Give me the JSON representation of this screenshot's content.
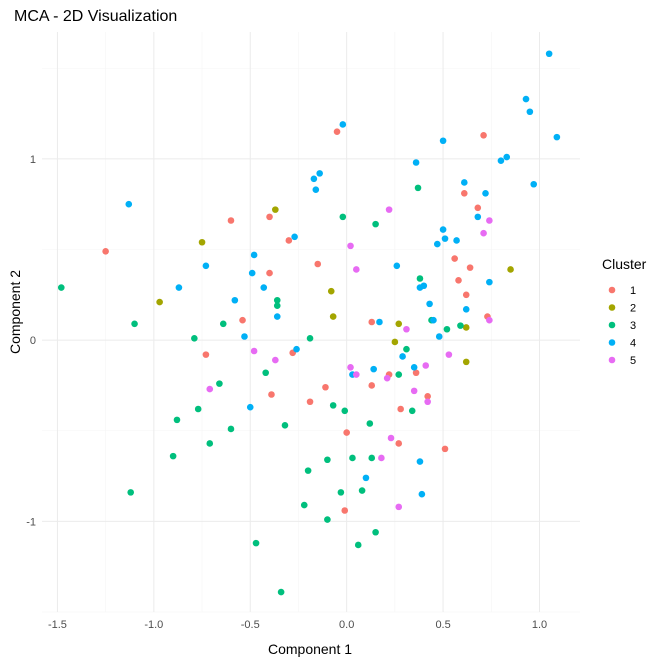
{
  "chart_data": {
    "type": "scatter",
    "title": "MCA - 2D Visualization",
    "xlabel": "Component 1",
    "ylabel": "Component 2",
    "xlim": [
      -1.58,
      1.21
    ],
    "ylim": [
      -1.5,
      1.7
    ],
    "x_ticks": [
      -1.5,
      -1.0,
      -0.5,
      0.0,
      0.5,
      1.0
    ],
    "x_tick_labels": [
      "-1.5",
      "-1.0",
      "-0.5",
      "0.0",
      "0.5",
      "1.0"
    ],
    "y_ticks": [
      -1,
      0,
      1
    ],
    "y_tick_labels": [
      "-1",
      "0",
      "1"
    ],
    "grid": true,
    "legend": {
      "title": "Cluster",
      "position": "right"
    },
    "series": [
      {
        "name": "1",
        "color": "#F8766D",
        "points": [
          [
            -1.25,
            0.49
          ],
          [
            -0.6,
            0.66
          ],
          [
            -0.54,
            0.11
          ],
          [
            -0.4,
            0.68
          ],
          [
            -0.4,
            0.37
          ],
          [
            -0.3,
            0.55
          ],
          [
            -0.28,
            -0.07
          ],
          [
            -0.39,
            -0.3
          ],
          [
            -0.73,
            -0.08
          ],
          [
            -0.15,
            0.42
          ],
          [
            -0.11,
            -0.26
          ],
          [
            -0.19,
            -0.34
          ],
          [
            -0.05,
            1.15
          ],
          [
            0.0,
            -0.51
          ],
          [
            -0.01,
            -0.94
          ],
          [
            0.13,
            0.1
          ],
          [
            0.13,
            -0.25
          ],
          [
            0.22,
            -0.19
          ],
          [
            0.28,
            -0.38
          ],
          [
            0.27,
            -0.57
          ],
          [
            0.36,
            -0.18
          ],
          [
            0.42,
            -0.31
          ],
          [
            0.51,
            -0.6
          ],
          [
            0.56,
            0.45
          ],
          [
            0.58,
            0.33
          ],
          [
            0.61,
            0.81
          ],
          [
            0.62,
            0.25
          ],
          [
            0.64,
            0.4
          ],
          [
            0.68,
            0.73
          ],
          [
            0.71,
            1.13
          ],
          [
            0.73,
            0.13
          ]
        ]
      },
      {
        "name": "2",
        "color": "#A3A500",
        "points": [
          [
            -0.97,
            0.21
          ],
          [
            -0.75,
            0.54
          ],
          [
            -0.37,
            0.72
          ],
          [
            -0.08,
            0.27
          ],
          [
            -0.07,
            0.13
          ],
          [
            0.25,
            -0.01
          ],
          [
            0.27,
            0.09
          ],
          [
            0.62,
            0.07
          ],
          [
            0.62,
            -0.12
          ],
          [
            0.85,
            0.39
          ]
        ]
      },
      {
        "name": "3",
        "color": "#00BF7D",
        "points": [
          [
            -1.48,
            0.29
          ],
          [
            -1.12,
            -0.84
          ],
          [
            -1.1,
            0.09
          ],
          [
            -0.9,
            -0.64
          ],
          [
            -0.88,
            -0.44
          ],
          [
            -0.79,
            0.01
          ],
          [
            -0.77,
            -0.38
          ],
          [
            -0.71,
            -0.57
          ],
          [
            -0.66,
            -0.24
          ],
          [
            -0.64,
            0.09
          ],
          [
            -0.6,
            -0.49
          ],
          [
            -0.47,
            -1.12
          ],
          [
            -0.42,
            -0.18
          ],
          [
            -0.36,
            0.19
          ],
          [
            -0.36,
            0.22
          ],
          [
            -0.34,
            -1.39
          ],
          [
            -0.32,
            -0.47
          ],
          [
            -0.22,
            -0.91
          ],
          [
            -0.2,
            -0.72
          ],
          [
            -0.19,
            0.01
          ],
          [
            -0.1,
            -0.66
          ],
          [
            -0.1,
            -0.99
          ],
          [
            -0.07,
            -0.36
          ],
          [
            -0.03,
            -0.84
          ],
          [
            -0.02,
            0.68
          ],
          [
            -0.01,
            -0.39
          ],
          [
            0.03,
            -0.65
          ],
          [
            0.06,
            -1.13
          ],
          [
            0.08,
            -0.83
          ],
          [
            0.12,
            -0.46
          ],
          [
            0.15,
            -1.06
          ],
          [
            0.15,
            0.64
          ],
          [
            0.27,
            -0.19
          ],
          [
            0.31,
            -0.05
          ],
          [
            0.34,
            -0.39
          ],
          [
            0.37,
            0.84
          ],
          [
            0.38,
            0.34
          ],
          [
            0.44,
            0.11
          ],
          [
            0.52,
            0.06
          ],
          [
            0.59,
            0.08
          ],
          [
            0.13,
            -0.65
          ]
        ]
      },
      {
        "name": "4",
        "color": "#00B0F6",
        "points": [
          [
            -1.13,
            0.75
          ],
          [
            -0.87,
            0.29
          ],
          [
            -0.73,
            0.41
          ],
          [
            -0.58,
            0.22
          ],
          [
            -0.53,
            0.02
          ],
          [
            -0.48,
            0.47
          ],
          [
            -0.5,
            -0.37
          ],
          [
            -0.49,
            0.37
          ],
          [
            -0.43,
            0.29
          ],
          [
            -0.36,
            0.13
          ],
          [
            -0.27,
            0.57
          ],
          [
            -0.26,
            -0.05
          ],
          [
            -0.17,
            0.89
          ],
          [
            -0.16,
            0.83
          ],
          [
            -0.14,
            0.92
          ],
          [
            -0.02,
            1.19
          ],
          [
            0.03,
            -0.19
          ],
          [
            0.1,
            -0.76
          ],
          [
            0.14,
            -0.16
          ],
          [
            0.17,
            0.1
          ],
          [
            0.26,
            0.41
          ],
          [
            0.29,
            -0.09
          ],
          [
            0.35,
            -0.15
          ],
          [
            0.36,
            0.98
          ],
          [
            0.38,
            0.29
          ],
          [
            0.38,
            -0.67
          ],
          [
            0.39,
            -0.85
          ],
          [
            0.4,
            0.3
          ],
          [
            0.43,
            0.2
          ],
          [
            0.45,
            0.11
          ],
          [
            0.47,
            0.53
          ],
          [
            0.48,
            0.02
          ],
          [
            0.5,
            1.1
          ],
          [
            0.5,
            0.61
          ],
          [
            0.51,
            0.56
          ],
          [
            0.57,
            0.55
          ],
          [
            0.61,
            0.87
          ],
          [
            0.62,
            0.17
          ],
          [
            0.68,
            0.68
          ],
          [
            0.72,
            0.81
          ],
          [
            0.74,
            0.32
          ],
          [
            0.8,
            0.99
          ],
          [
            0.83,
            1.01
          ],
          [
            0.93,
            1.33
          ],
          [
            0.95,
            1.26
          ],
          [
            0.97,
            0.86
          ],
          [
            1.05,
            1.58
          ],
          [
            1.09,
            1.12
          ]
        ]
      },
      {
        "name": "5",
        "color": "#E76BF3",
        "points": [
          [
            -0.71,
            -0.27
          ],
          [
            -0.48,
            -0.06
          ],
          [
            -0.37,
            -0.11
          ],
          [
            0.02,
            0.52
          ],
          [
            0.02,
            -0.15
          ],
          [
            0.05,
            0.39
          ],
          [
            0.05,
            -0.19
          ],
          [
            0.18,
            -0.65
          ],
          [
            0.22,
            0.72
          ],
          [
            0.21,
            -0.21
          ],
          [
            0.23,
            -0.54
          ],
          [
            0.27,
            -0.92
          ],
          [
            0.31,
            0.06
          ],
          [
            0.35,
            -0.28
          ],
          [
            0.41,
            -0.14
          ],
          [
            0.42,
            -0.34
          ],
          [
            0.71,
            0.59
          ],
          [
            0.74,
            0.66
          ],
          [
            0.74,
            0.11
          ],
          [
            0.53,
            -0.08
          ]
        ]
      }
    ]
  }
}
